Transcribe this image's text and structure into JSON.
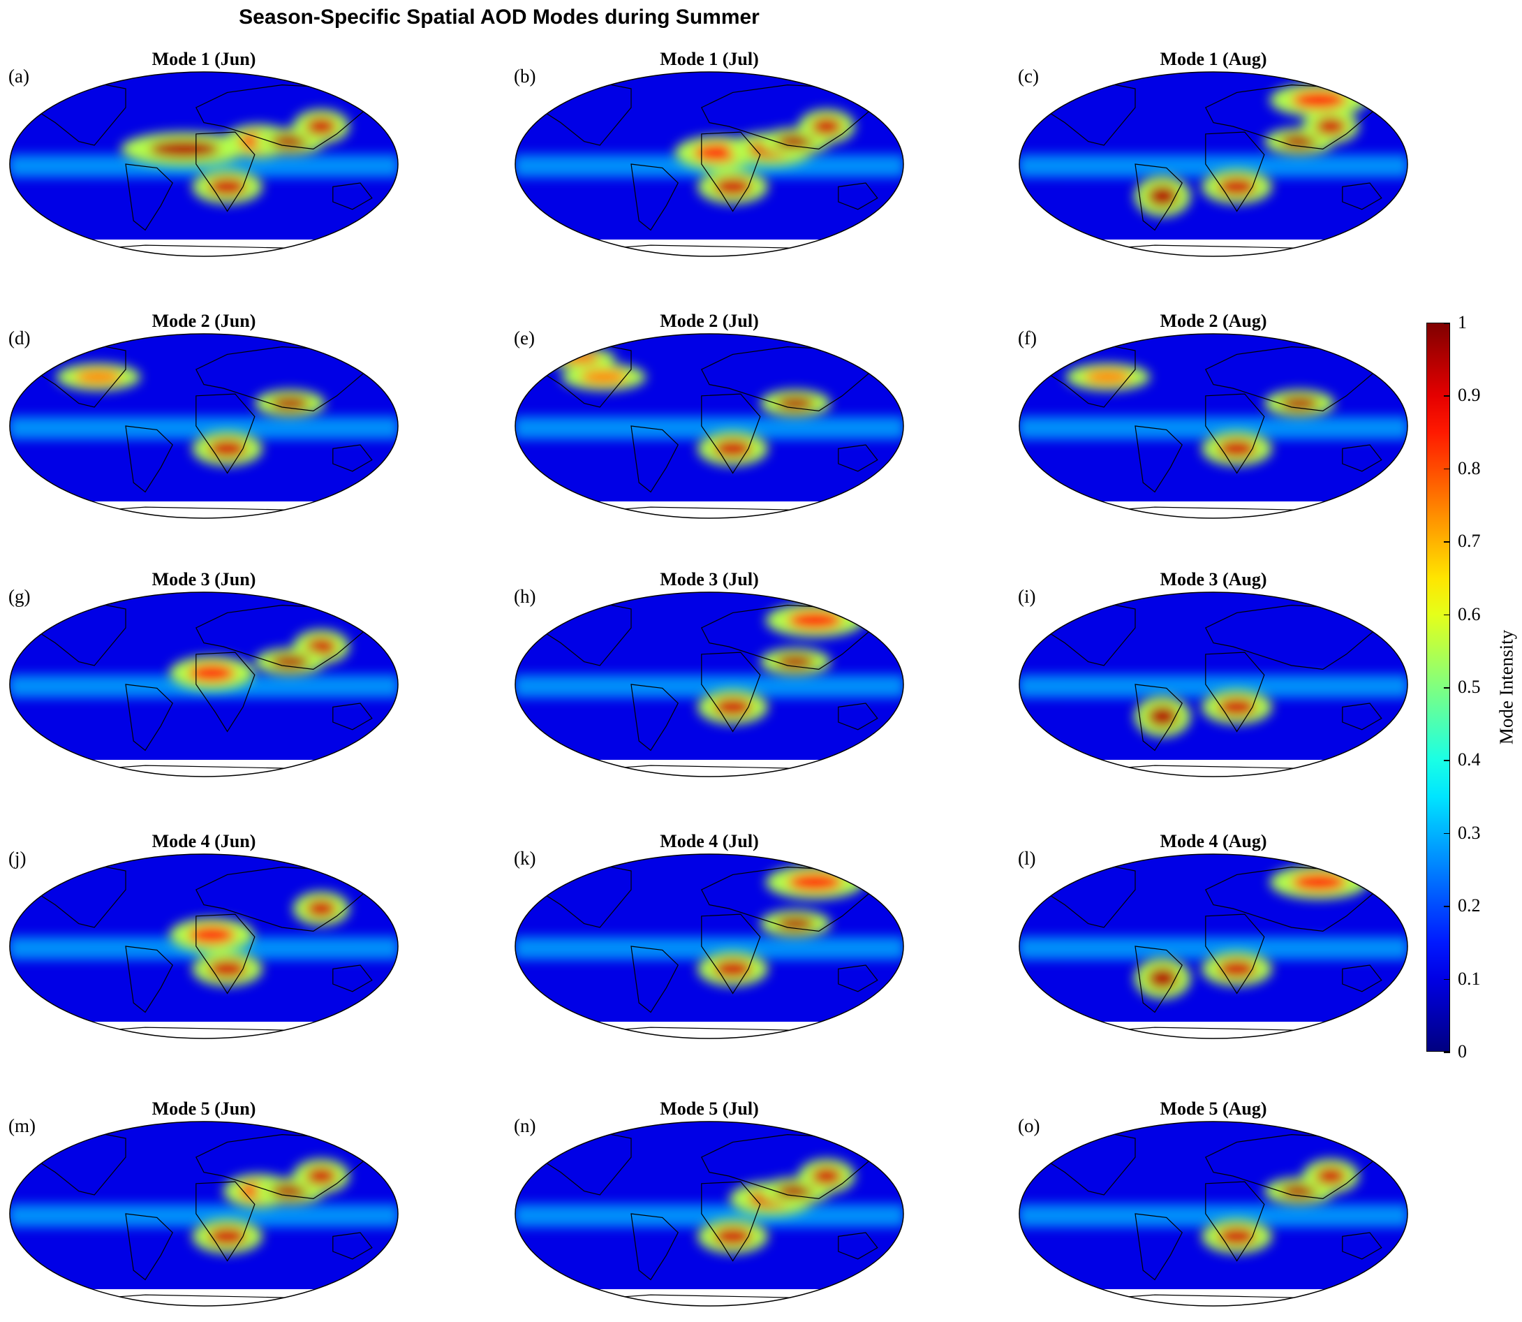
{
  "title": "Season-Specific Spatial AOD Modes during Summer",
  "colorbar": {
    "label": "Mode Intensity",
    "ticks": [
      "1",
      "0.9",
      "0.8",
      "0.7",
      "0.6",
      "0.5",
      "0.4",
      "0.3",
      "0.2",
      "0.1",
      "0"
    ],
    "range": [
      0,
      1
    ],
    "colormap": "jet"
  },
  "colors": {
    "ocean_low": "#0a1fb4",
    "land_outline": "#000000",
    "no_data": "#ffffff"
  },
  "panels": [
    {
      "letter": "(a)",
      "title": "Mode 1 (Jun)",
      "hotspots": [
        "saharan-dust-plume",
        "central-africa",
        "middle-east",
        "south-asia",
        "east-asia"
      ]
    },
    {
      "letter": "(b)",
      "title": "Mode 1 (Jul)",
      "hotspots": [
        "west-africa",
        "arabian-peninsula",
        "south-asia",
        "east-asia",
        "central-africa"
      ]
    },
    {
      "letter": "(c)",
      "title": "Mode 1 (Aug)",
      "hotspots": [
        "south-america",
        "central-africa",
        "south-asia",
        "east-asia",
        "siberia"
      ]
    },
    {
      "letter": "(d)",
      "title": "Mode 2 (Jun)",
      "hotspots": [
        "central-africa",
        "south-asia",
        "north-america"
      ]
    },
    {
      "letter": "(e)",
      "title": "Mode 2 (Jul)",
      "hotspots": [
        "central-africa",
        "south-asia",
        "north-america",
        "canada"
      ]
    },
    {
      "letter": "(f)",
      "title": "Mode 2 (Aug)",
      "hotspots": [
        "central-africa",
        "south-asia",
        "north-america"
      ]
    },
    {
      "letter": "(g)",
      "title": "Mode 3 (Jun)",
      "hotspots": [
        "east-asia",
        "south-asia",
        "west-africa"
      ]
    },
    {
      "letter": "(h)",
      "title": "Mode 3 (Jul)",
      "hotspots": [
        "central-africa",
        "siberia",
        "south-asia"
      ]
    },
    {
      "letter": "(i)",
      "title": "Mode 3 (Aug)",
      "hotspots": [
        "south-america",
        "central-africa"
      ]
    },
    {
      "letter": "(j)",
      "title": "Mode 4 (Jun)",
      "hotspots": [
        "west-africa",
        "east-asia",
        "central-africa"
      ]
    },
    {
      "letter": "(k)",
      "title": "Mode 4 (Jul)",
      "hotspots": [
        "siberia",
        "central-africa",
        "south-asia"
      ]
    },
    {
      "letter": "(l)",
      "title": "Mode 4 (Aug)",
      "hotspots": [
        "siberia",
        "central-africa",
        "south-america"
      ]
    },
    {
      "letter": "(m)",
      "title": "Mode 5 (Jun)",
      "hotspots": [
        "middle-east",
        "south-asia",
        "east-asia",
        "central-africa"
      ]
    },
    {
      "letter": "(n)",
      "title": "Mode 5 (Jul)",
      "hotspots": [
        "arabian-peninsula",
        "south-asia",
        "east-asia",
        "central-africa"
      ]
    },
    {
      "letter": "(o)",
      "title": "Mode 5 (Aug)",
      "hotspots": [
        "central-africa",
        "south-asia",
        "east-asia"
      ]
    }
  ]
}
